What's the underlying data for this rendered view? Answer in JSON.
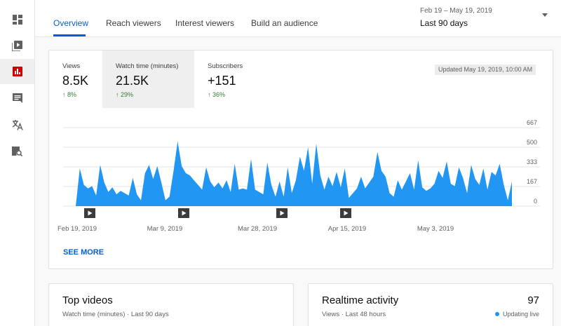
{
  "sidebar": {
    "items": [
      {
        "icon": "dashboard-icon",
        "active": false
      },
      {
        "icon": "videos-icon",
        "active": false
      },
      {
        "icon": "analytics-icon",
        "active": true
      },
      {
        "icon": "comments-icon",
        "active": false
      },
      {
        "icon": "translate-icon",
        "active": false
      },
      {
        "icon": "audio-library-icon",
        "active": false
      }
    ]
  },
  "tabs": [
    "Overview",
    "Reach viewers",
    "Interest viewers",
    "Build an audience"
  ],
  "date_selector": {
    "range": "Feb 19 – May 19, 2019",
    "preset": "Last 90 days"
  },
  "metrics": [
    {
      "label": "Views",
      "value": "8.5K",
      "change": "8%",
      "direction": "up"
    },
    {
      "label": "Watch time (minutes)",
      "value": "21.5K",
      "change": "29%",
      "direction": "up"
    },
    {
      "label": "Subscribers",
      "value": "+151",
      "change": "36%",
      "direction": "up"
    }
  ],
  "updated": "Updated May 19, 2019, 10:00 AM",
  "see_more": "SEE MORE",
  "chart_data": {
    "type": "area",
    "series": [
      {
        "values": [
          0,
          320,
          180,
          150,
          170,
          90,
          350,
          200,
          120,
          160,
          100,
          130,
          110,
          90,
          240,
          100,
          50,
          280,
          350,
          230,
          340,
          200,
          50,
          80,
          300,
          550,
          340,
          280,
          260,
          220,
          180,
          140,
          330,
          210,
          160,
          200,
          150,
          220,
          120,
          360,
          140,
          150,
          140,
          400,
          140,
          120,
          100,
          370,
          180,
          80,
          210,
          80,
          330,
          110,
          220,
          420,
          300,
          500,
          190,
          530,
          260,
          140,
          250,
          170,
          290,
          160,
          320,
          70,
          110,
          150,
          250,
          150,
          200,
          250,
          460,
          300,
          250,
          110,
          80,
          220,
          140,
          210,
          280,
          140,
          390,
          160,
          130,
          150,
          190,
          300,
          240,
          380,
          190,
          170,
          330,
          240,
          110,
          350,
          230,
          180,
          320,
          140,
          290,
          260,
          360,
          180,
          50,
          210
        ]
      }
    ],
    "y_ticks": [
      "667",
      "500",
      "333",
      "167",
      "0"
    ],
    "ylim": [
      0,
      667
    ],
    "x_ticks": [
      "Feb 19, 2019",
      "Mar 9, 2019",
      "Mar 28, 2019",
      "Apr 15, 2019",
      "May 3, 2019"
    ],
    "color": "#2196f3",
    "video_markers": 4
  },
  "top_videos": {
    "title": "Top videos",
    "subtitle": "Watch time (minutes) · Last 90 days"
  },
  "realtime": {
    "title": "Realtime activity",
    "subtitle": "Views · Last 48 hours",
    "count": "97",
    "status": "Updating live"
  }
}
